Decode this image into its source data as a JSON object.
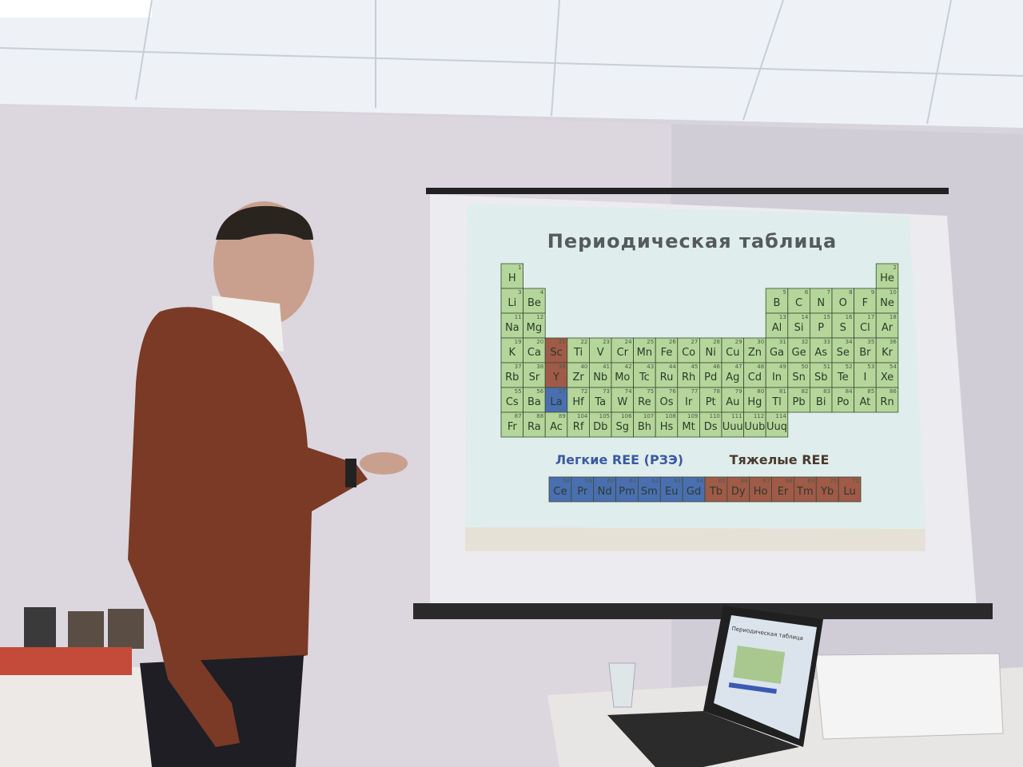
{
  "slide": {
    "title": "Периодическая таблица",
    "light_label": "Легкие REE (РЗЭ)",
    "heavy_label": "Тяжелые REE",
    "table": {
      "rows": [
        [
          {
            "s": "H",
            "n": 1
          },
          null,
          null,
          null,
          null,
          null,
          null,
          null,
          null,
          null,
          null,
          null,
          null,
          null,
          null,
          null,
          null,
          {
            "s": "He",
            "n": 2
          }
        ],
        [
          {
            "s": "Li",
            "n": 3
          },
          {
            "s": "Be",
            "n": 4
          },
          null,
          null,
          null,
          null,
          null,
          null,
          null,
          null,
          null,
          null,
          {
            "s": "B",
            "n": 5
          },
          {
            "s": "C",
            "n": 6
          },
          {
            "s": "N",
            "n": 7
          },
          {
            "s": "O",
            "n": 8
          },
          {
            "s": "F",
            "n": 9
          },
          {
            "s": "Ne",
            "n": 10
          }
        ],
        [
          {
            "s": "Na",
            "n": 11
          },
          {
            "s": "Mg",
            "n": 12
          },
          null,
          null,
          null,
          null,
          null,
          null,
          null,
          null,
          null,
          null,
          {
            "s": "Al",
            "n": 13
          },
          {
            "s": "Si",
            "n": 14
          },
          {
            "s": "P",
            "n": 15
          },
          {
            "s": "S",
            "n": 16
          },
          {
            "s": "Cl",
            "n": 17
          },
          {
            "s": "Ar",
            "n": 18
          }
        ],
        [
          {
            "s": "K",
            "n": 19
          },
          {
            "s": "Ca",
            "n": 20
          },
          {
            "s": "Sc",
            "n": 21,
            "hl": "heavy"
          },
          {
            "s": "Ti",
            "n": 22
          },
          {
            "s": "V",
            "n": 23
          },
          {
            "s": "Cr",
            "n": 24
          },
          {
            "s": "Mn",
            "n": 25
          },
          {
            "s": "Fe",
            "n": 26
          },
          {
            "s": "Co",
            "n": 27
          },
          {
            "s": "Ni",
            "n": 28
          },
          {
            "s": "Cu",
            "n": 29
          },
          {
            "s": "Zn",
            "n": 30
          },
          {
            "s": "Ga",
            "n": 31
          },
          {
            "s": "Ge",
            "n": 32
          },
          {
            "s": "As",
            "n": 33
          },
          {
            "s": "Se",
            "n": 34
          },
          {
            "s": "Br",
            "n": 35
          },
          {
            "s": "Kr",
            "n": 36
          }
        ],
        [
          {
            "s": "Rb",
            "n": 37
          },
          {
            "s": "Sr",
            "n": 38
          },
          {
            "s": "Y",
            "n": 39,
            "hl": "heavy"
          },
          {
            "s": "Zr",
            "n": 40
          },
          {
            "s": "Nb",
            "n": 41
          },
          {
            "s": "Mo",
            "n": 42
          },
          {
            "s": "Tc",
            "n": 43
          },
          {
            "s": "Ru",
            "n": 44
          },
          {
            "s": "Rh",
            "n": 45
          },
          {
            "s": "Pd",
            "n": 46
          },
          {
            "s": "Ag",
            "n": 47
          },
          {
            "s": "Cd",
            "n": 48
          },
          {
            "s": "In",
            "n": 49
          },
          {
            "s": "Sn",
            "n": 50
          },
          {
            "s": "Sb",
            "n": 51
          },
          {
            "s": "Te",
            "n": 52
          },
          {
            "s": "I",
            "n": 53
          },
          {
            "s": "Xe",
            "n": 54
          }
        ],
        [
          {
            "s": "Cs",
            "n": 55
          },
          {
            "s": "Ba",
            "n": 56
          },
          {
            "s": "La",
            "n": 57,
            "hl": "light"
          },
          {
            "s": "Hf",
            "n": 72
          },
          {
            "s": "Ta",
            "n": 73
          },
          {
            "s": "W",
            "n": 74
          },
          {
            "s": "Re",
            "n": 75
          },
          {
            "s": "Os",
            "n": 76
          },
          {
            "s": "Ir",
            "n": 77
          },
          {
            "s": "Pt",
            "n": 78
          },
          {
            "s": "Au",
            "n": 79
          },
          {
            "s": "Hg",
            "n": 80
          },
          {
            "s": "Tl",
            "n": 81
          },
          {
            "s": "Pb",
            "n": 82
          },
          {
            "s": "Bi",
            "n": 83
          },
          {
            "s": "Po",
            "n": 84
          },
          {
            "s": "At",
            "n": 85
          },
          {
            "s": "Rn",
            "n": 86
          }
        ],
        [
          {
            "s": "Fr",
            "n": 87
          },
          {
            "s": "Ra",
            "n": 88
          },
          {
            "s": "Ac",
            "n": 89
          },
          {
            "s": "Rf",
            "n": 104
          },
          {
            "s": "Db",
            "n": 105
          },
          {
            "s": "Sg",
            "n": 106
          },
          {
            "s": "Bh",
            "n": 107
          },
          {
            "s": "Hs",
            "n": 108
          },
          {
            "s": "Mt",
            "n": 109
          },
          {
            "s": "Ds",
            "n": 110
          },
          {
            "s": "Uuu",
            "n": 111
          },
          {
            "s": "Uub",
            "n": 112
          },
          {
            "s": "Uuq",
            "n": 114
          },
          null,
          null,
          null,
          null,
          null
        ]
      ]
    },
    "ree": [
      {
        "s": "Ce",
        "n": 58,
        "hl": "light"
      },
      {
        "s": "Pr",
        "n": 59,
        "hl": "light"
      },
      {
        "s": "Nd",
        "n": 60,
        "hl": "light"
      },
      {
        "s": "Pm",
        "n": 61,
        "hl": "light"
      },
      {
        "s": "Sm",
        "n": 62,
        "hl": "light"
      },
      {
        "s": "Eu",
        "n": 63,
        "hl": "light"
      },
      {
        "s": "Gd",
        "n": 64,
        "hl": "light"
      },
      {
        "s": "Tb",
        "n": 65,
        "hl": "heavy"
      },
      {
        "s": "Dy",
        "n": 66,
        "hl": "heavy"
      },
      {
        "s": "Ho",
        "n": 67,
        "hl": "heavy"
      },
      {
        "s": "Er",
        "n": 68,
        "hl": "heavy"
      },
      {
        "s": "Tm",
        "n": 69,
        "hl": "heavy"
      },
      {
        "s": "Yb",
        "n": 70,
        "hl": "heavy"
      },
      {
        "s": "Lu",
        "n": 71,
        "hl": "heavy"
      }
    ]
  },
  "laptop": {
    "title": "Периодическая таблица"
  }
}
